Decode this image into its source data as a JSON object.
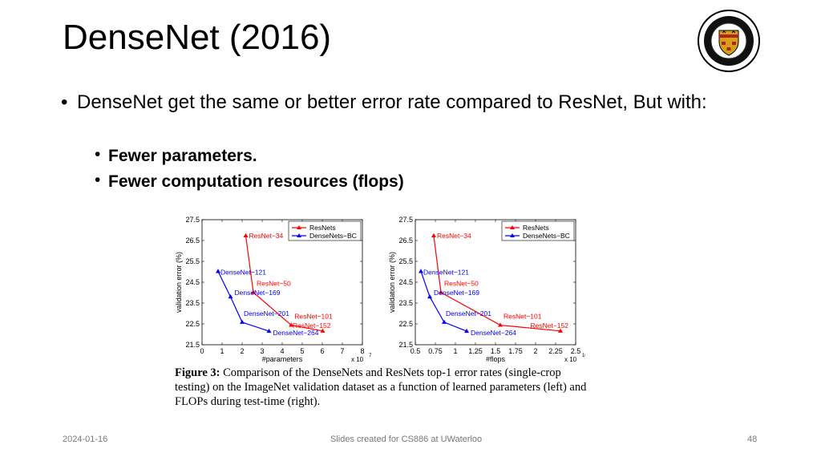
{
  "slide": {
    "title": "DenseNet (2016)",
    "bullet_main": "DenseNet get the same or better error rate compared to ResNet, But with:",
    "sub_bullets": [
      "Fewer parameters.",
      "Fewer computation resources (flops)"
    ],
    "logo_label": "UNIVERSITY OF WATERLOO",
    "footer_date": "2024-01-16",
    "footer_center": "Slides created for CS886 at UWaterloo",
    "footer_page": "48"
  },
  "caption": {
    "label": "Figure 3:",
    "text": "Comparison of the DenseNets and ResNets top-1 error rates (single-crop testing) on the ImageNet validation dataset as a function of learned parameters (left) and FLOPs during test-time (right)."
  },
  "colors": {
    "resnet": "#ff0000",
    "densenet": "#0000ff",
    "logo_gold": "#d4a017",
    "logo_red": "#b22222"
  },
  "chart_data": [
    {
      "type": "line",
      "xlabel": "#parameters",
      "xexp": "x 10",
      "xexp_power": "7",
      "ylabel": "validation error (%)",
      "xlim": [
        0,
        8
      ],
      "ylim": [
        21.5,
        27.5
      ],
      "xticks": [
        "0",
        "1",
        "2",
        "3",
        "4",
        "5",
        "6",
        "7",
        "8"
      ],
      "yticks": [
        "21.5",
        "22.5",
        "23.5",
        "24.5",
        "25.5",
        "26.5",
        "27.5"
      ],
      "legend": [
        "ResNets",
        "DenseNets−BC"
      ],
      "legend_position": "top-right",
      "series": [
        {
          "name": "ResNets",
          "points": [
            {
              "label": "ResNet−34",
              "x": 2.18,
              "y": 26.73
            },
            {
              "label": "ResNet−50",
              "x": 2.56,
              "y": 24.01
            },
            {
              "label": "ResNet−101",
              "x": 4.45,
              "y": 22.44
            },
            {
              "label": "ResNet−152",
              "x": 6.02,
              "y": 22.16
            }
          ]
        },
        {
          "name": "DenseNets−BC",
          "points": [
            {
              "label": "DenseNet−121",
              "x": 0.8,
              "y": 25.02
            },
            {
              "label": "DenseNet−169",
              "x": 1.42,
              "y": 23.8
            },
            {
              "label": "DenseNet−201",
              "x": 2.0,
              "y": 22.58
            },
            {
              "label": "DenseNet−264",
              "x": 3.34,
              "y": 22.15
            }
          ]
        }
      ]
    },
    {
      "type": "line",
      "xlabel": "#flops",
      "xexp": "x 10",
      "xexp_power": "10",
      "ylabel": "validation error (%)",
      "xlim": [
        0.5,
        2.5
      ],
      "ylim": [
        21.5,
        27.5
      ],
      "xticks": [
        "0.5",
        "0.75",
        "1",
        "1.25",
        "1.5",
        "1.75",
        "2",
        "2.25",
        "2.5"
      ],
      "yticks": [
        "21.5",
        "22.5",
        "23.5",
        "24.5",
        "25.5",
        "26.5",
        "27.5"
      ],
      "legend": [
        "ResNets",
        "DenseNets−BC"
      ],
      "legend_position": "top-right",
      "series": [
        {
          "name": "ResNets",
          "points": [
            {
              "label": "ResNet−34",
              "x": 0.73,
              "y": 26.73
            },
            {
              "label": "ResNet−50",
              "x": 0.82,
              "y": 24.01
            },
            {
              "label": "ResNet−101",
              "x": 1.56,
              "y": 22.44
            },
            {
              "label": "ResNet−152",
              "x": 2.31,
              "y": 22.16
            }
          ]
        },
        {
          "name": "DenseNets−BC",
          "points": [
            {
              "label": "DenseNet−121",
              "x": 0.57,
              "y": 25.02
            },
            {
              "label": "DenseNet−169",
              "x": 0.68,
              "y": 23.8
            },
            {
              "label": "DenseNet−201",
              "x": 0.86,
              "y": 22.58
            },
            {
              "label": "DenseNet−264",
              "x": 1.14,
              "y": 22.15
            }
          ]
        }
      ]
    }
  ]
}
